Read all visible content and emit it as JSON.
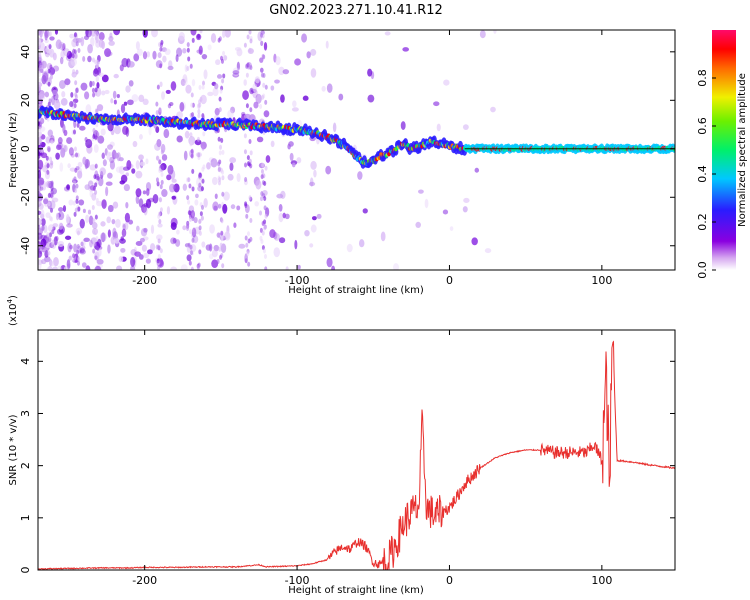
{
  "title": "GN02.2023.271.10.41.R12",
  "chart_data": [
    {
      "type": "heatmap",
      "xlabel": "Height of straight line (km)",
      "ylabel": "Frequency (Hz)",
      "xlim": [
        -270,
        148
      ],
      "ylim": [
        -50,
        49
      ],
      "xticks": [
        -200,
        -100,
        0,
        100
      ],
      "xtick_labels": [
        "-200",
        "-100",
        "0",
        "100"
      ],
      "yticks": [
        -40,
        -20,
        0,
        20,
        40
      ],
      "ytick_labels": [
        "-40",
        "-20",
        "0",
        "20",
        "40"
      ],
      "colorbar": {
        "label": "Normalized spectral amplitude",
        "range": [
          0,
          1
        ],
        "ticks": [
          0,
          0.2,
          0.4,
          0.6,
          0.8
        ],
        "tick_labels": [
          "0.0",
          "0.2",
          "0.4",
          "0.6",
          "0.8"
        ],
        "colormap": "rainbow (white-purple-blue-cyan-green-yellow-red-magenta)"
      },
      "ridge": {
        "x": [
          -265,
          -240,
          -220,
          -200,
          -180,
          -160,
          -140,
          -120,
          -100,
          -90,
          -80,
          -70,
          -60,
          -55,
          -50,
          -45,
          -40,
          -35,
          -30,
          -25,
          -20,
          -15,
          -10,
          -5,
          0,
          10,
          50,
          100,
          148
        ],
        "y": [
          15,
          13,
          12,
          12,
          11,
          10,
          10,
          9,
          8,
          7,
          5,
          2,
          -4,
          -6,
          -5,
          -3,
          -2,
          0,
          2,
          0,
          1,
          2,
          3,
          2,
          1,
          0,
          0,
          0,
          0
        ]
      }
    },
    {
      "type": "line",
      "xlabel": "Height of straight line (km)",
      "ylabel": "SNR (10 * v/v)",
      "yscale_label": "(x10",
      "yscale_exponent": "4",
      "xlim": [
        -270,
        148
      ],
      "ylim": [
        0,
        4.6
      ],
      "xticks": [
        -200,
        -100,
        0,
        100
      ],
      "xtick_labels": [
        "-200",
        "-100",
        "0",
        "100"
      ],
      "yticks": [
        0,
        1,
        2,
        3,
        4
      ],
      "ytick_labels": [
        "0",
        "1",
        "2",
        "3",
        "4"
      ],
      "color": "#e8302e",
      "series": [
        {
          "x": [
            -270,
            -250,
            -230,
            -210,
            -200,
            -180,
            -160,
            -140,
            -125,
            -120,
            -110,
            -100,
            -90,
            -80,
            -75,
            -70,
            -65,
            -60,
            -55,
            -50,
            -45,
            -40,
            -35,
            -30,
            -25,
            -20,
            -18,
            -15,
            -10,
            -5,
            0,
            5,
            10,
            20,
            30,
            40,
            50,
            60,
            70,
            80,
            90,
            95,
            100,
            103,
            105,
            107,
            110,
            120,
            130,
            148
          ],
          "y": [
            0.02,
            0.03,
            0.04,
            0.04,
            0.05,
            0.05,
            0.06,
            0.06,
            0.1,
            0.06,
            0.07,
            0.08,
            0.12,
            0.2,
            0.35,
            0.45,
            0.4,
            0.55,
            0.45,
            0.15,
            0.1,
            0.2,
            0.5,
            0.9,
            1.1,
            1.2,
            2.8,
            1.2,
            1.05,
            1.1,
            1.2,
            1.4,
            1.65,
            1.95,
            2.15,
            2.25,
            2.3,
            2.3,
            2.25,
            2.25,
            2.25,
            2.4,
            2.1,
            3.7,
            1.5,
            4.5,
            2.1,
            2.07,
            2.02,
            1.95
          ]
        }
      ]
    }
  ]
}
